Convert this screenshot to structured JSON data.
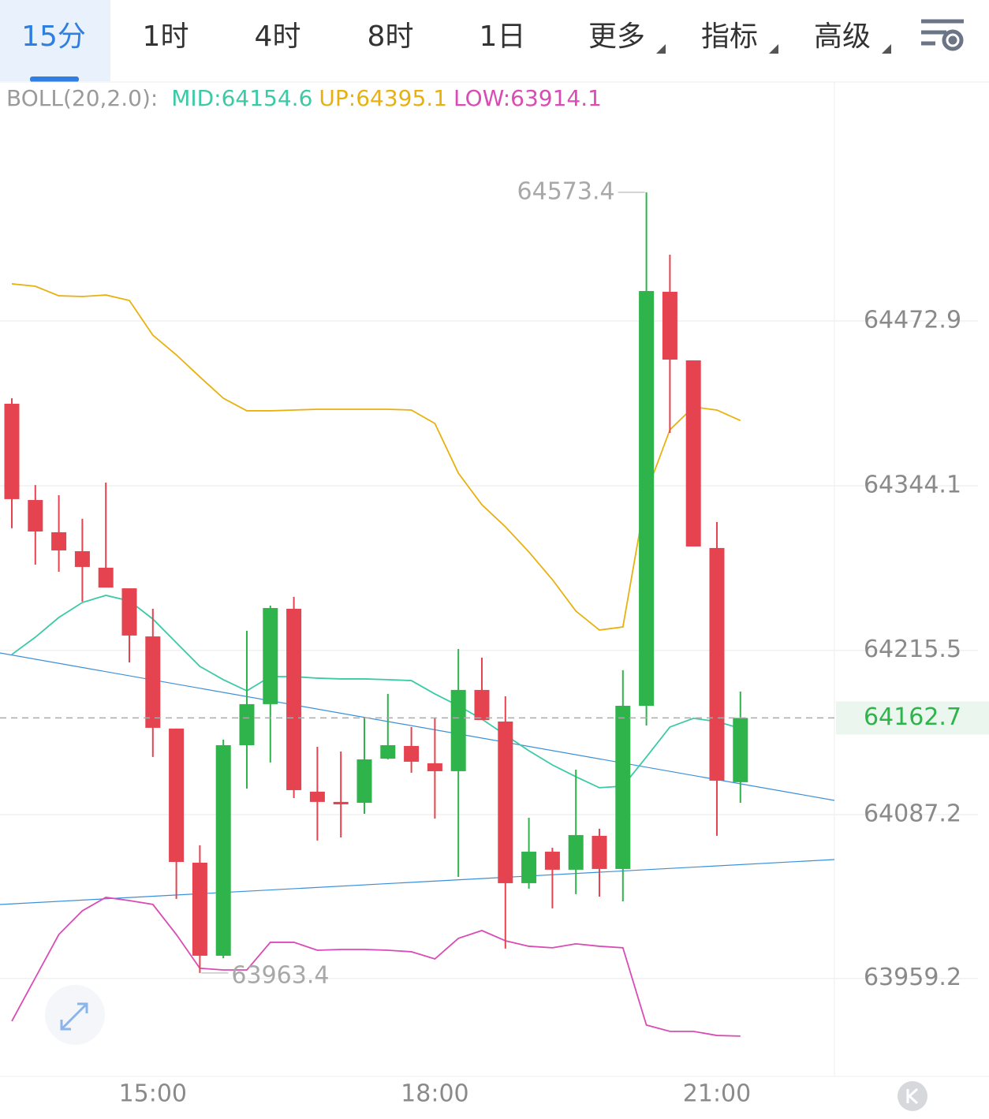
{
  "toolbar": {
    "tabs": [
      "15分",
      "1时",
      "4时",
      "8时",
      "1日",
      "更多",
      "指标",
      "高级"
    ],
    "active": 0
  },
  "chart_data": {
    "type": "candlestick",
    "indicator": "BOLL(20,2.0):",
    "categories": [
      null,
      null,
      null,
      null,
      null,
      null,
      "15:00",
      null,
      null,
      null,
      null,
      null,
      null,
      null,
      null,
      null,
      null,
      null,
      "18:00",
      null,
      null,
      null,
      null,
      null,
      null,
      null,
      null,
      null,
      null,
      null,
      "21:00",
      null
    ],
    "open": [
      64408.2,
      64333.0,
      64307.8,
      64293.0,
      64280.1,
      64264.0,
      64226.4,
      64154.4,
      64049.6,
      63976.9,
      64141.4,
      64173.5,
      64248.0,
      64105.1,
      64097.1,
      64096.4,
      64130.9,
      64140.8,
      64127.3,
      64121.1,
      64184.6,
      64159.9,
      64033.6,
      64058.2,
      64044.1,
      64070.6,
      64044.7,
      64172.2,
      64495.7,
      64442.1,
      64295.5,
      64112.5
    ],
    "high": [
      64412.5,
      64344.7,
      64336.7,
      64318.3,
      64346.6,
      64264.0,
      64248.0,
      64154.4,
      64063.2,
      64145.7,
      64230.8,
      64250.5,
      64257.3,
      64140.2,
      64136.5,
      64163.0,
      64181.5,
      64155.6,
      64163.0,
      64216.6,
      64209.8,
      64179.6,
      64084.7,
      64061.3,
      64122.3,
      64076.1,
      64200.0,
      64573.4,
      64524.7,
      64442.1,
      64315.8,
      64183.3
    ],
    "low": [
      64310.9,
      64282.5,
      64277.0,
      64253.6,
      64264.6,
      64206.1,
      64132.2,
      64021.3,
      63963.4,
      63975.0,
      64107.5,
      64127.9,
      64100.1,
      64066.9,
      64069.3,
      64087.8,
      64130.3,
      64119.9,
      64084.1,
      64038.5,
      64161.1,
      63982.5,
      64029.3,
      64013.9,
      64025.0,
      64023.1,
      64019.4,
      64156.8,
      64385.4,
      64296.7,
      64070.6,
      64096.4
    ],
    "close": [
      64333.7,
      64308.4,
      64293.6,
      64280.7,
      64264.6,
      64227.1,
      64155.0,
      64050.2,
      63976.9,
      64141.4,
      64173.5,
      64248.6,
      64106.3,
      64097.1,
      64095.2,
      64130.3,
      64141.4,
      64128.5,
      64121.1,
      64184.6,
      64161.1,
      64033.6,
      64058.2,
      64044.1,
      64071.2,
      64044.7,
      64172.2,
      64496.3,
      64442.7,
      64296.7,
      64113.7,
      64162.7
    ],
    "up_color": "#2fb44b",
    "down_color": "#e5434f",
    "series": [
      {
        "name": "MID:64154.6",
        "color": "#3ccaa6",
        "values": [
          64212.3,
          64225.8,
          64241.2,
          64252.9,
          64258.5,
          64254.2,
          64240.0,
          64221.5,
          64203.0,
          64192.6,
          64183.9,
          64195.0,
          64195.0,
          64193.8,
          64193.2,
          64193.2,
          64192.6,
          64191.9,
          64181.5,
          64172.2,
          64161.8,
          64149.4,
          64137.1,
          64126.0,
          64116.8,
          64108.2,
          64109.4,
          64132.2,
          64155.6,
          64162.4,
          64159.9,
          64154.6
        ]
      },
      {
        "name": "UP:64395.1",
        "color": "#e9b10f",
        "values": [
          64501.9,
          64500.0,
          64492.6,
          64492.0,
          64493.2,
          64488.9,
          64461.8,
          64446.4,
          64429.2,
          64412.5,
          64402.7,
          64402.7,
          64403.3,
          64403.9,
          64403.9,
          64403.9,
          64403.9,
          64403.3,
          64392.8,
          64354.0,
          64329.3,
          64312.1,
          64292.4,
          64270.8,
          64246.2,
          64231.4,
          64233.8,
          64338.6,
          64387.9,
          64405.7,
          64403.3,
          64395.1
        ]
      },
      {
        "name": "LOW:63914.1",
        "color": "#d94bb5",
        "values": [
          63925.8,
          63959.7,
          63993.5,
          64012.0,
          64022.5,
          64020.0,
          64017.0,
          63993.5,
          63967.1,
          63965.8,
          63965.8,
          63987.4,
          63987.4,
          63981.2,
          63981.8,
          63981.8,
          63981.2,
          63980.0,
          63974.4,
          63990.5,
          63996.6,
          63988.6,
          63984.3,
          63983.1,
          63986.2,
          63984.3,
          63983.1,
          63922.7,
          63917.8,
          63917.8,
          63914.6,
          63914.1
        ]
      }
    ],
    "ylim": [
      63882.6,
      64659.0
    ],
    "yticks": [
      63959.2,
      64087.2,
      64215.5,
      64344.1,
      64472.9
    ],
    "grid": true
  }
}
